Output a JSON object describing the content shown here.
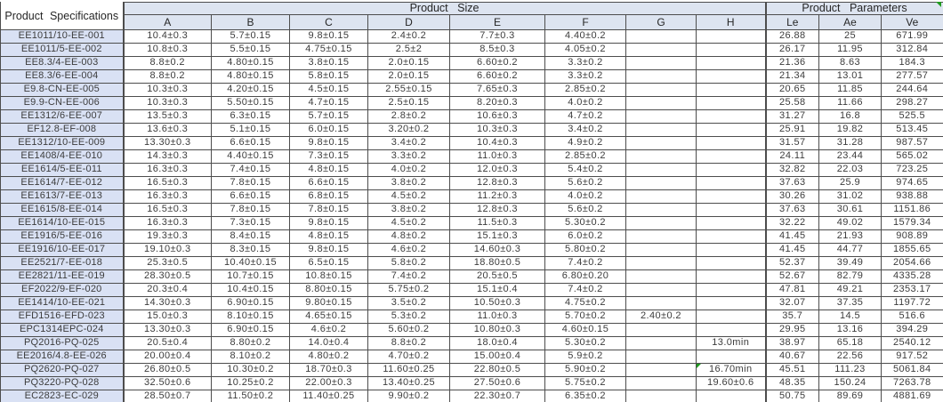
{
  "colors": {
    "grid_line": "#4d4d4d",
    "header_bg": "#dde4f0",
    "spec_column_bg": "#d9e1f4",
    "cell_bg": "#ffffff",
    "text": "#3c3c3c",
    "flag_green": "#1f9a1f"
  },
  "table": {
    "spec_header": "Product Specifications",
    "size_group": "Product Size",
    "params_group": "Product Parameters",
    "size_columns": [
      "A",
      "B",
      "C",
      "D",
      "E",
      "F",
      "G",
      "H"
    ],
    "param_columns": [
      "Le",
      "Ae",
      "Ve"
    ],
    "rows": [
      {
        "spec": "EE1011/10-EE-001",
        "values": [
          "10.4±0.3",
          "5.7±0.15",
          "9.8±0.15",
          "2.4±0.2",
          "7.7±0.3",
          "4.40±0.2",
          "",
          "",
          "26.88",
          "25",
          "671.99"
        ]
      },
      {
        "spec": "EE1011/5-EE-002",
        "values": [
          "10.8±0.3",
          "5.5±0.15",
          "4.75±0.15",
          "2.5±2",
          "8.5±0.3",
          "4.05±0.2",
          "",
          "",
          "26.17",
          "11.95",
          "312.84"
        ]
      },
      {
        "spec": "EE8.3/4-EE-003",
        "values": [
          "8.8±0.2",
          "4.80±0.15",
          "3.8±0.15",
          "2.0±0.15",
          "6.60±0.2",
          "3.3±0.2",
          "",
          "",
          "21.36",
          "8.63",
          "184.3"
        ]
      },
      {
        "spec": "EE8.3/6-EE-004",
        "values": [
          "8.8±0.2",
          "4.80±0.15",
          "5.8±0.15",
          "2.0±0.15",
          "6.60±0.2",
          "3.3±0.2",
          "",
          "",
          "21.34",
          "13.01",
          "277.57"
        ]
      },
      {
        "spec": "E9.8-CN-EE-005",
        "values": [
          "10.3±0.3",
          "4.20±0.15",
          "4.5±0.15",
          "2.55±0.15",
          "7.65±0.3",
          "2.85±0.2",
          "",
          "",
          "20.65",
          "11.85",
          "244.64"
        ]
      },
      {
        "spec": "E9.9-CN-EE-006",
        "values": [
          "10.3±0.3",
          "5.50±0.15",
          "4.7±0.15",
          "2.5±0.15",
          "8.20±0.3",
          "4.0±0.2",
          "",
          "",
          "25.58",
          "11.66",
          "298.27"
        ]
      },
      {
        "spec": "EE1312/6-EE-007",
        "values": [
          "13.5±0.3",
          "6.3±0.15",
          "5.7±0.15",
          "2.8±0.2",
          "10.6±0.3",
          "4.7±0.2",
          "",
          "",
          "31.27",
          "16.8",
          "525.5"
        ]
      },
      {
        "spec": "EF12.8-EF-008",
        "values": [
          "13.6±0.3",
          "5.1±0.15",
          "6.0±0.15",
          "3.20±0.2",
          "10.3±0.3",
          "3.4±0.2",
          "",
          "",
          "25.91",
          "19.82",
          "513.45"
        ]
      },
      {
        "spec": "EE1312/10-EE-009",
        "values": [
          "13.30±0.3",
          "6.6±0.15",
          "9.8±0.15",
          "3.4±0.2",
          "10.4±0.3",
          "4.9±0.2",
          "",
          "",
          "31.57",
          "31.28",
          "987.57"
        ]
      },
      {
        "spec": "EE1408/4-EE-010",
        "values": [
          "14.3±0.3",
          "4.40±0.15",
          "7.3±0.15",
          "3.3±0.2",
          "11.0±0.3",
          "2.85±0.2",
          "",
          "",
          "24.11",
          "23.44",
          "565.02"
        ]
      },
      {
        "spec": "EE1614/5-EE-011",
        "values": [
          "16.3±0.3",
          "7.4±0.15",
          "4.8±0.15",
          "4.0±0.2",
          "12.0±0.3",
          "5.4±0.2",
          "",
          "",
          "32.82",
          "22.03",
          "723.25"
        ]
      },
      {
        "spec": "EE1614/7-EE-012",
        "values": [
          "16.5±0.3",
          "7.8±0.15",
          "6.6±0.15",
          "3.8±0.2",
          "12.8±0.3",
          "5.6±0.2",
          "",
          "",
          "37.63",
          "25.9",
          "974.65"
        ]
      },
      {
        "spec": "EE1613/7-EE-013",
        "values": [
          "16.3±0.3",
          "6.6±0.15",
          "6.8±0.15",
          "4.5±0.2",
          "11.2±0.3",
          "4.0±0.2",
          "",
          "",
          "30.26",
          "31.02",
          "938.88"
        ]
      },
      {
        "spec": "EE1615/8-EE-014",
        "values": [
          "16.5±0.3",
          "7.8±0.15",
          "7.8±0.15",
          "3.8±0.2",
          "12.8±0.3",
          "5.6±0.2",
          "",
          "",
          "37.63",
          "30.61",
          "1151.86"
        ]
      },
      {
        "spec": "EE1614/10-EE-015",
        "values": [
          "16.3±0.3",
          "7.3±0.15",
          "9.8±0.15",
          "4.5±0.2",
          "11.5±0.3",
          "5.30±0.2",
          "",
          "",
          "32.22",
          "49.02",
          "1579.34"
        ]
      },
      {
        "spec": "EE1916/5-EE-016",
        "values": [
          "19.3±0.3",
          "8.4±0.15",
          "4.8±0.15",
          "4.8±0.2",
          "15.1±0.3",
          "6.0±0.2",
          "",
          "",
          "41.45",
          "21.93",
          "908.89"
        ]
      },
      {
        "spec": "EE1916/10-EE-017",
        "values": [
          "19.10±0.3",
          "8.3±0.15",
          "9.8±0.15",
          "4.6±0.2",
          "14.60±0.3",
          "5.80±0.2",
          "",
          "",
          "41.45",
          "44.77",
          "1855.65"
        ]
      },
      {
        "spec": "EE2521/7-EE-018",
        "values": [
          "25.3±0.5",
          "10.40±0.15",
          "6.5±0.15",
          "5.8±0.2",
          "18.80±0.5",
          "7.4±0.2",
          "",
          "",
          "52.37",
          "39.49",
          "2054.66"
        ]
      },
      {
        "spec": "EE2821/11-EE-019",
        "values": [
          "28.30±0.5",
          "10.7±0.15",
          "10.8±0.15",
          "7.4±0.2",
          "20.5±0.5",
          "6.80±0.20",
          "",
          "",
          "52.67",
          "82.79",
          "4335.28"
        ]
      },
      {
        "spec": "EF2022/9-EF-020",
        "values": [
          "20.3±0.4",
          "10.4±0.15",
          "8.80±0.15",
          "5.75±0.2",
          "15.1±0.4",
          "7.4±0.2",
          "",
          "",
          "47.81",
          "49.21",
          "2353.17"
        ]
      },
      {
        "spec": "EE1414/10-EE-021",
        "values": [
          "14.30±0.3",
          "6.90±0.15",
          "9.80±0.15",
          "3.5±0.2",
          "10.50±0.3",
          "4.75±0.2",
          "",
          "",
          "32.07",
          "37.35",
          "1197.72"
        ]
      },
      {
        "spec": "EFD1516-EFD-023",
        "values": [
          "15.0±0.3",
          "8.10±0.15",
          "4.65±0.15",
          "5.3±0.2",
          "11.0±0.3",
          "5.70±0.2",
          "2.40±0.2",
          "",
          "35.7",
          "14.5",
          "516.6"
        ]
      },
      {
        "spec": "EPC1314EPC-024",
        "values": [
          "13.30±0.3",
          "6.90±0.15",
          "4.6±0.2",
          "5.60±0.2",
          "10.80±0.3",
          "4.60±0.15",
          "",
          "",
          "29.95",
          "13.16",
          "394.29"
        ]
      },
      {
        "spec": "PQ2016-PQ-025",
        "values": [
          "20.5±0.4",
          "8.80±0.2",
          "14.0±0.4",
          "8.8±0.2",
          "18.0±0.4",
          "5.30±0.2",
          "",
          "13.0min",
          "38.97",
          "65.18",
          "2540.12"
        ]
      },
      {
        "spec": "EE2016/4.8-EE-026",
        "values": [
          "20.00±0.4",
          "8.10±0.2",
          "4.80±0.2",
          "4.70±0.2",
          "15.00±0.4",
          "5.9±0.2",
          "",
          "",
          "40.67",
          "22.56",
          "917.52"
        ]
      },
      {
        "spec": "PQ2620-PQ-027",
        "values": [
          "26.80±0.5",
          "10.30±0.2",
          "18.70±0.3",
          "11.60±0.25",
          "22.80±0.5",
          "5.90±0.2",
          "",
          "16.70min",
          "45.51",
          "111.23",
          "5061.84"
        ],
        "marker": "H"
      },
      {
        "spec": "PQ3220-PQ-028",
        "values": [
          "32.50±0.6",
          "10.25±0.2",
          "22.00±0.3",
          "13.40±0.25",
          "27.50±0.6",
          "5.75±0.2",
          "",
          "19.60±0.6",
          "48.35",
          "150.24",
          "7263.78"
        ]
      },
      {
        "spec": "EC2823-EC-029",
        "values": [
          "28.50±0.7",
          "11.50±0.2",
          "11.40±0.25",
          "9.90±0.2",
          "22.30±0.7",
          "6.35±0.2",
          "",
          "",
          "50.75",
          "89.69",
          "4881.69"
        ]
      }
    ]
  }
}
